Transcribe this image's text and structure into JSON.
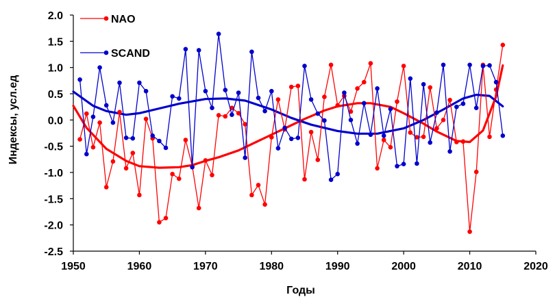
{
  "chart_data": {
    "type": "line",
    "xlabel": "Годы",
    "ylabel": "Индексы, усл.ед",
    "xlim": [
      1950,
      2020
    ],
    "ylim": [
      -2.5,
      2.0
    ],
    "xticks": [
      "1950",
      "1960",
      "1970",
      "1980",
      "1990",
      "2000",
      "2010",
      "2020"
    ],
    "yticks": [
      "2.0",
      "1.5",
      "1.0",
      "0.5",
      "0.0",
      "-0.5",
      "-1.0",
      "-1.5",
      "-2.0",
      "-2.5"
    ],
    "grid": false,
    "legend": "top-left",
    "series": [
      {
        "name": "NAO",
        "color": "#ff0000",
        "x": [
          1951,
          1952,
          1953,
          1954,
          1955,
          1956,
          1957,
          1958,
          1959,
          1960,
          1961,
          1962,
          1963,
          1964,
          1965,
          1966,
          1967,
          1968,
          1969,
          1970,
          1971,
          1972,
          1973,
          1974,
          1975,
          1976,
          1977,
          1978,
          1979,
          1980,
          1981,
          1982,
          1983,
          1984,
          1985,
          1986,
          1987,
          1988,
          1989,
          1990,
          1991,
          1992,
          1993,
          1994,
          1995,
          1996,
          1997,
          1998,
          1999,
          2000,
          2001,
          2002,
          2003,
          2004,
          2005,
          2006,
          2007,
          2008,
          2009,
          2010,
          2011,
          2012,
          2013,
          2014,
          2015
        ],
        "values": [
          -0.37,
          0.12,
          -0.52,
          -0.05,
          -1.28,
          -0.79,
          0.15,
          -0.92,
          -0.63,
          -1.43,
          0.02,
          -0.35,
          -1.95,
          -1.87,
          -1.03,
          -1.12,
          -0.38,
          -0.88,
          -1.68,
          -0.77,
          -1.05,
          0.09,
          0.07,
          0.23,
          0.13,
          -0.08,
          -1.43,
          -1.24,
          -1.61,
          -0.33,
          0.39,
          -0.18,
          0.63,
          0.65,
          -1.13,
          -0.23,
          -0.76,
          0.44,
          1.05,
          0.28,
          0.46,
          0.16,
          0.6,
          0.72,
          1.08,
          -0.92,
          -0.38,
          -0.52,
          0.35,
          1.03,
          -0.24,
          -0.33,
          -0.32,
          0.62,
          -0.16,
          0.0,
          0.38,
          -0.42,
          -0.41,
          -2.13,
          -0.99,
          1.05,
          -0.32,
          0.58,
          1.43
        ]
      },
      {
        "name": "SCAND",
        "color": "#0000cc",
        "x": [
          1951,
          1952,
          1953,
          1954,
          1955,
          1956,
          1957,
          1958,
          1959,
          1960,
          1961,
          1962,
          1963,
          1964,
          1965,
          1966,
          1967,
          1968,
          1969,
          1970,
          1971,
          1972,
          1973,
          1974,
          1975,
          1976,
          1977,
          1978,
          1979,
          1980,
          1981,
          1982,
          1983,
          1984,
          1985,
          1986,
          1987,
          1988,
          1989,
          1990,
          1991,
          1992,
          1993,
          1994,
          1995,
          1996,
          1997,
          1998,
          1999,
          2000,
          2001,
          2002,
          2003,
          2004,
          2005,
          2006,
          2007,
          2008,
          2009,
          2010,
          2011,
          2012,
          2013,
          2014,
          2015
        ],
        "values": [
          0.77,
          -0.65,
          0.06,
          1.0,
          0.28,
          -0.05,
          0.71,
          -0.34,
          -0.35,
          0.71,
          0.55,
          -0.3,
          -0.4,
          -0.53,
          0.45,
          0.41,
          1.35,
          -0.9,
          1.33,
          0.55,
          0.23,
          1.64,
          0.57,
          0.1,
          0.52,
          -0.72,
          1.3,
          0.42,
          0.17,
          0.55,
          -0.54,
          -0.15,
          -0.36,
          -0.34,
          1.03,
          0.39,
          0.12,
          -0.01,
          -1.14,
          -1.03,
          0.52,
          0.0,
          -0.45,
          0.32,
          -0.28,
          0.6,
          -0.3,
          0.21,
          -0.88,
          -0.84,
          0.79,
          -0.83,
          0.68,
          -0.43,
          0.14,
          1.05,
          -0.6,
          0.25,
          0.31,
          1.05,
          0.23,
          1.03,
          1.04,
          0.72,
          -0.3
        ]
      }
    ],
    "trend_lines": [
      {
        "name": "NAO",
        "color": "#ff0000",
        "x": [
          1950,
          1952,
          1955,
          1958,
          1960,
          1963,
          1966,
          1968,
          1970,
          1972,
          1975,
          1978,
          1980,
          1983,
          1985,
          1988,
          1990,
          1993,
          1995,
          1998,
          2000,
          2003,
          2005,
          2008,
          2010,
          2012,
          2014,
          2015
        ],
        "values": [
          0.27,
          -0.15,
          -0.55,
          -0.78,
          -0.88,
          -0.91,
          -0.9,
          -0.86,
          -0.78,
          -0.71,
          -0.58,
          -0.4,
          -0.28,
          -0.1,
          0.02,
          0.18,
          0.26,
          0.32,
          0.32,
          0.25,
          0.13,
          -0.07,
          -0.22,
          -0.4,
          -0.42,
          -0.2,
          0.45,
          1.04
        ]
      },
      {
        "name": "SCAND",
        "color": "#0000cc",
        "x": [
          1950,
          1953,
          1955,
          1958,
          1960,
          1963,
          1966,
          1970,
          1973,
          1976,
          1980,
          1983,
          1986,
          1990,
          1993,
          1996,
          2000,
          2003,
          2006,
          2009,
          2011,
          2013,
          2015
        ],
        "values": [
          0.54,
          0.27,
          0.17,
          0.1,
          0.13,
          0.22,
          0.31,
          0.4,
          0.41,
          0.37,
          0.2,
          0.04,
          -0.09,
          -0.21,
          -0.26,
          -0.26,
          -0.16,
          0.0,
          0.2,
          0.41,
          0.48,
          0.46,
          0.26
        ]
      }
    ]
  }
}
